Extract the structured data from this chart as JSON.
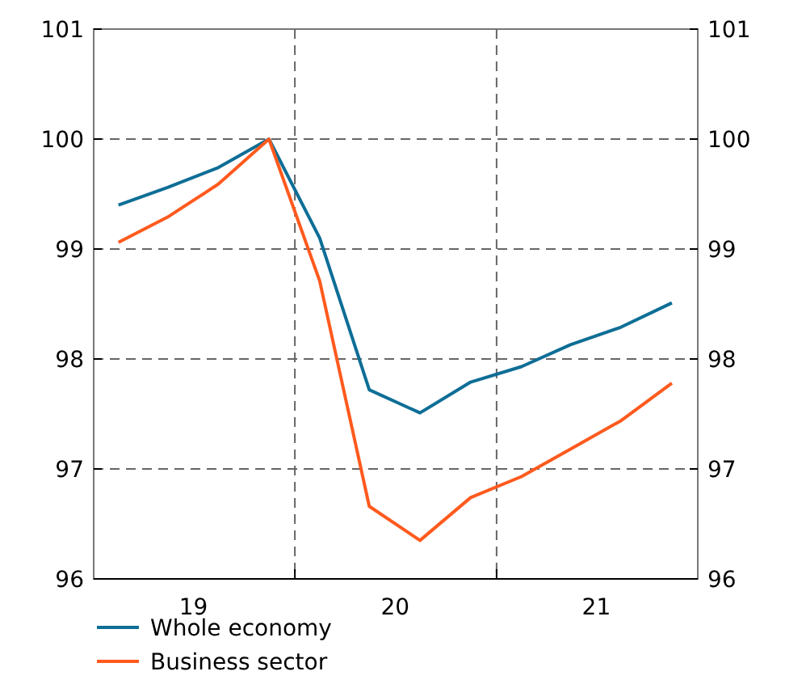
{
  "chart_data": {
    "type": "line",
    "x": [
      "2019-02-15",
      "2019-05-15",
      "2019-08-15",
      "2019-11-15",
      "2020-02-15",
      "2020-05-15",
      "2020-08-15",
      "2020-11-15",
      "2021-02-15",
      "2021-05-15",
      "2021-08-15",
      "2021-11-15"
    ],
    "series": [
      {
        "name": "Whole economy",
        "color": "#0e6e96",
        "values": [
          99.4,
          99.56,
          99.74,
          100,
          99.1,
          97.72,
          97.51,
          97.79,
          97.93,
          98.13,
          98.29,
          98.51
        ]
      },
      {
        "name": "Business sector",
        "color": "#ff5a1e",
        "values": [
          99.06,
          99.29,
          99.59,
          100,
          98.71,
          96.66,
          96.35,
          96.74,
          96.93,
          97.18,
          97.44,
          97.78
        ]
      }
    ],
    "xlim": [
      "2019-01-01",
      "2022-01-01"
    ],
    "xticks": [
      {
        "value": "2019-07-01",
        "label": "19"
      },
      {
        "value": "2020-01-01",
        "label": null
      },
      {
        "value": "2020-07-01",
        "label": "20"
      },
      {
        "value": "2021-01-01",
        "label": null
      },
      {
        "value": "2021-07-01",
        "label": "21"
      }
    ],
    "ylim": [
      96,
      101
    ],
    "yticks": [
      96,
      97,
      98,
      99,
      100,
      101
    ],
    "y2lim": [
      96,
      101
    ],
    "y2ticks": [
      96,
      97,
      98,
      99,
      100,
      101
    ],
    "grid": true,
    "legend": "bottom left",
    "line_style": "solid",
    "marker": "none"
  }
}
